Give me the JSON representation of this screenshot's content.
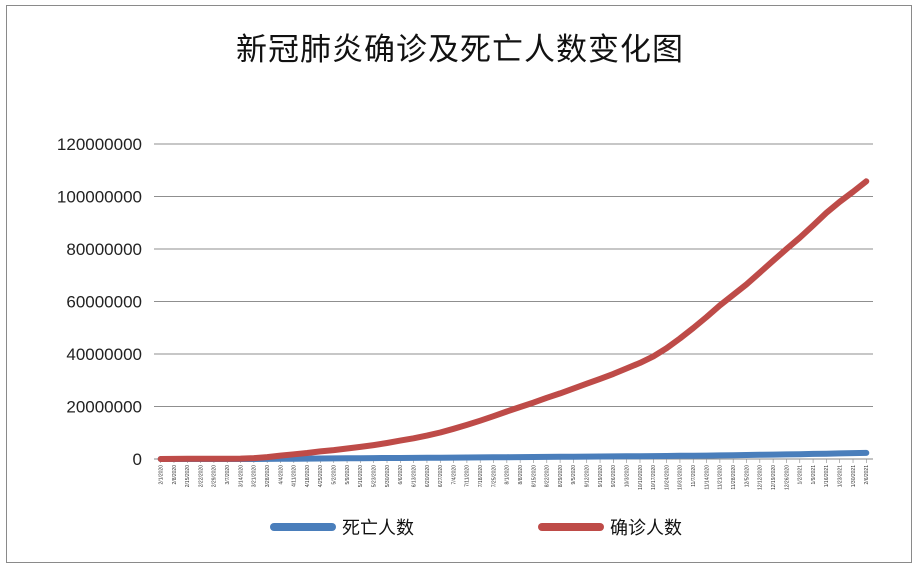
{
  "chart_data": {
    "type": "line",
    "title": "新冠肺炎确诊及死亡人数变化图",
    "xlabel": "",
    "ylabel": "",
    "ylim": [
      0,
      120000000
    ],
    "yticks": [
      "0",
      "20000000",
      "40000000",
      "60000000",
      "80000000",
      "100000000",
      "120000000"
    ],
    "grid": "horizontal",
    "legend": "bottom",
    "x": [
      "2/1/2020",
      "2/8/2020",
      "2/15/2020",
      "2/22/2020",
      "2/29/2020",
      "3/7/2020",
      "3/14/2020",
      "3/21/2020",
      "3/28/2020",
      "4/4/2020",
      "4/11/2020",
      "4/18/2020",
      "4/25/2020",
      "5/2/2020",
      "5/9/2020",
      "5/16/2020",
      "5/23/2020",
      "5/30/2020",
      "6/6/2020",
      "6/13/2020",
      "6/20/2020",
      "6/27/2020",
      "7/4/2020",
      "7/11/2020",
      "7/18/2020",
      "7/25/2020",
      "8/1/2020",
      "8/8/2020",
      "8/15/2020",
      "8/22/2020",
      "8/29/2020",
      "9/5/2020",
      "9/12/2020",
      "9/19/2020",
      "9/26/2020",
      "10/3/2020",
      "10/10/2020",
      "10/17/2020",
      "10/24/2020",
      "10/31/2020",
      "11/7/2020",
      "11/14/2020",
      "11/21/2020",
      "11/28/2020",
      "12/5/2020",
      "12/12/2020",
      "12/19/2020",
      "12/26/2020",
      "1/2/2021",
      "1/9/2021",
      "1/16/2021",
      "1/23/2021",
      "1/30/2021",
      "2/6/2021"
    ],
    "series": [
      {
        "name": "死亡人数",
        "color": "#4a7ebb",
        "values": [
          300,
          800,
          1700,
          2500,
          3000,
          3800,
          6000,
          14000,
          30000,
          65000,
          110000,
          160000,
          205000,
          240000,
          275000,
          305000,
          335000,
          365000,
          395000,
          425000,
          455000,
          490000,
          530000,
          565000,
          605000,
          645000,
          685000,
          725000,
          765000,
          805000,
          845000,
          880000,
          915000,
          955000,
          995000,
          1035000,
          1075000,
          1115000,
          1160000,
          1205000,
          1255000,
          1310000,
          1375000,
          1440000,
          1510000,
          1590000,
          1665000,
          1740000,
          1830000,
          1930000,
          2030000,
          2130000,
          2230000,
          2310000
        ]
      },
      {
        "name": "确诊人数",
        "color": "#be4b48",
        "values": [
          14000,
          37000,
          69000,
          80000,
          86000,
          110000,
          160000,
          330000,
          720000,
          1300000,
          1800000,
          2300000,
          2900000,
          3400000,
          4000000,
          4600000,
          5300000,
          6100000,
          7000000,
          7900000,
          8900000,
          10100000,
          11500000,
          13000000,
          14600000,
          16300000,
          18100000,
          19800000,
          21500000,
          23300000,
          25000000,
          26800000,
          28700000,
          30500000,
          32400000,
          34500000,
          36600000,
          39100000,
          42200000,
          45900000,
          49900000,
          54100000,
          58500000,
          62500000,
          66500000,
          71000000,
          75500000,
          80000000,
          84300000,
          89000000,
          93800000,
          98000000,
          101800000,
          105800000
        ]
      }
    ]
  }
}
